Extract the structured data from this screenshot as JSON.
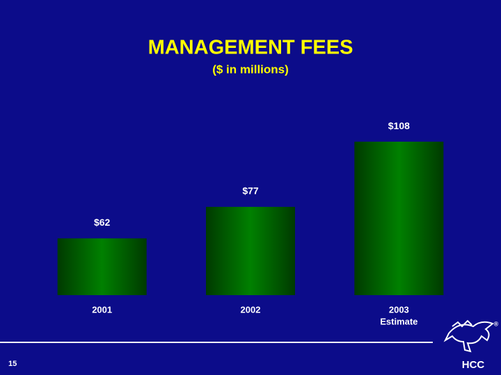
{
  "chart_data": {
    "type": "bar",
    "title": "MANAGEMENT FEES",
    "subtitle": "($ in millions)",
    "categories": [
      "2001",
      "2002",
      "2003"
    ],
    "category_notes": [
      null,
      null,
      "Estimate"
    ],
    "values": [
      62,
      77,
      108
    ],
    "value_labels": [
      "$62",
      "$77",
      "$108"
    ],
    "color": "#008000",
    "ylim": [
      35,
      110
    ]
  },
  "footer": {
    "page_number": "15",
    "logo_text": "HCC",
    "registered_mark": "®"
  }
}
